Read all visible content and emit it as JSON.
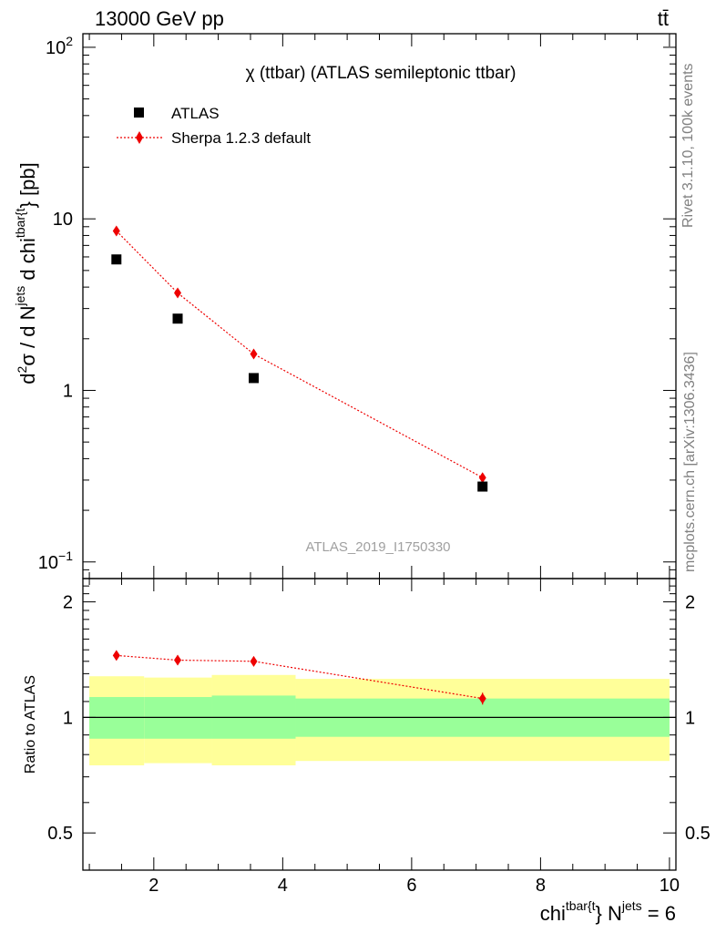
{
  "header": {
    "energy": "13000 GeV pp",
    "process": "tt̄"
  },
  "side_text": {
    "rivet": "Rivet 3.1.10,  100k events",
    "mcplots": "mcplots.cern.ch [arXiv:1306.3436]"
  },
  "plot_title": "χ (ttbar) (ATLAS semileptonic ttbar)",
  "analysis_id": "ATLAS_2019_I1750330",
  "ylabel_main": {
    "d2": "d",
    "sup2": "2",
    "sigma": "σ /  d N",
    "supjets": "jets",
    "dchi": " d chi",
    "suptbar": "tbar{t",
    "brace": "} [pb]"
  },
  "ylabel_ratio": "Ratio to ATLAS",
  "xlabel": {
    "chi": "chi",
    "suptbar": "tbar{t",
    "brace": "} N",
    "supjets": "jets",
    "eq": " = 6"
  },
  "legend": {
    "atlas": "ATLAS",
    "sherpa": "Sherpa 1.2.3 default"
  },
  "colors": {
    "data": "#000000",
    "mc": "#ee0000",
    "band_inner": "#99ff99",
    "band_outer": "#ffff99",
    "side_text": "#808080"
  },
  "chart_data": [
    {
      "type": "scatter",
      "yscale": "log",
      "xlim": [
        0.9,
        10.1
      ],
      "ylim": [
        0.08,
        120
      ],
      "x_ticklabels": [],
      "y_ticklabels": [
        {
          "v": 100,
          "base": "10",
          "exp": "2"
        },
        {
          "v": 10,
          "base": "10",
          "exp": ""
        },
        {
          "v": 1,
          "base": "1",
          "exp": ""
        },
        {
          "v": 0.1,
          "base": "10",
          "exp": "−1"
        }
      ],
      "series": [
        {
          "name": "ATLAS",
          "x": [
            1.42,
            2.37,
            3.55,
            7.1
          ],
          "y": [
            5.8,
            2.62,
            1.18,
            0.275
          ]
        },
        {
          "name": "Sherpa 1.2.3 default",
          "x": [
            1.42,
            2.37,
            3.55,
            7.1
          ],
          "y": [
            8.5,
            3.7,
            1.63,
            0.31
          ]
        }
      ]
    },
    {
      "type": "line",
      "xlim": [
        0.9,
        10.1
      ],
      "ylim": [
        0.4,
        2.3
      ],
      "x_ticklabels": [
        "2",
        "4",
        "6",
        "8",
        "10"
      ],
      "y_ticklabels": [
        "2",
        "1",
        "0.5"
      ],
      "reference": 1,
      "bands": [
        {
          "x0": 1.0,
          "x1": 1.85,
          "inner": [
            0.88,
            1.13
          ],
          "outer": [
            0.75,
            1.28
          ]
        },
        {
          "x0": 1.85,
          "x1": 2.9,
          "inner": [
            0.88,
            1.13
          ],
          "outer": [
            0.76,
            1.27
          ]
        },
        {
          "x0": 2.9,
          "x1": 4.2,
          "inner": [
            0.88,
            1.14
          ],
          "outer": [
            0.75,
            1.29
          ]
        },
        {
          "x0": 4.2,
          "x1": 10.0,
          "inner": [
            0.89,
            1.12
          ],
          "outer": [
            0.77,
            1.26
          ]
        }
      ],
      "series": [
        {
          "name": "Sherpa 1.2.3 default",
          "x": [
            1.42,
            2.37,
            3.55,
            7.1
          ],
          "y": [
            1.45,
            1.41,
            1.4,
            1.12
          ],
          "err": [
            0.02,
            0.04,
            0.04,
            0.04
          ]
        }
      ]
    }
  ]
}
